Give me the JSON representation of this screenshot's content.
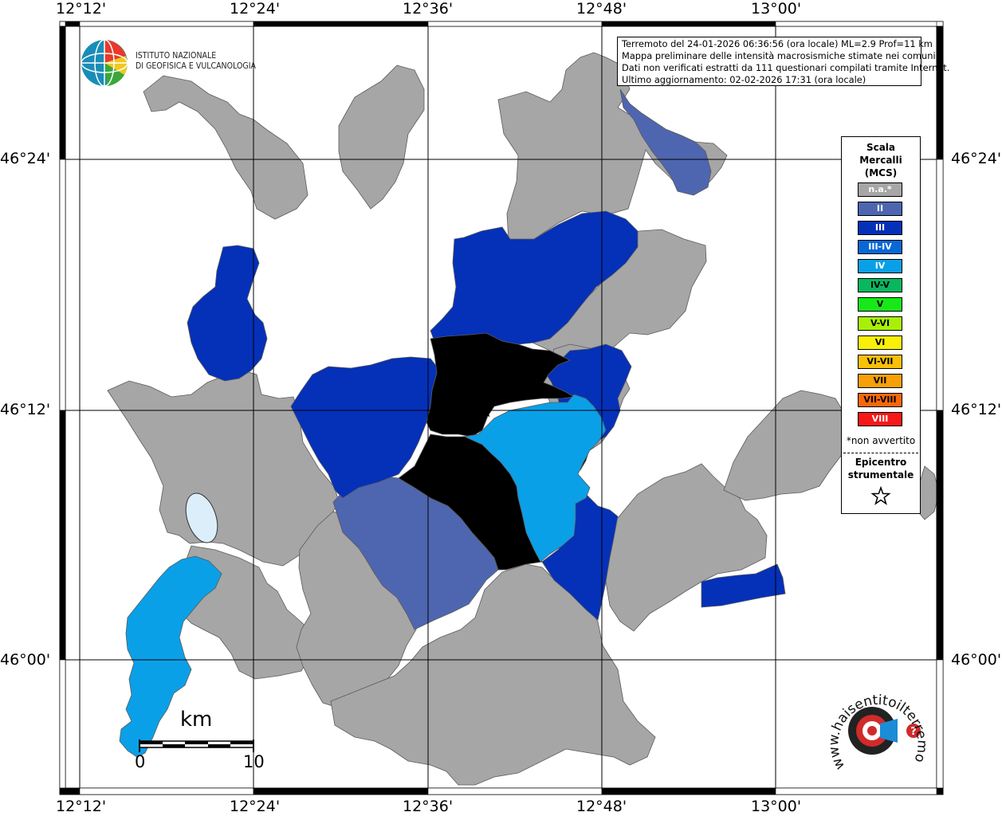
{
  "map": {
    "lon_labels": [
      "12°12'",
      "12°24'",
      "12°36'",
      "12°48'",
      "13°00'"
    ],
    "lat_labels": [
      "46°24'",
      "46°12'",
      "46°00'"
    ],
    "info": {
      "line1": "Terremoto del 24-01-2026 06:36:56 (ora locale) ML=2.9 Prof=11 km",
      "line2": "Mappa preliminare delle intensità macrosismiche stimate nei comuni",
      "line3": "Dati non verificati estratti da 111 questionari compilati tramite Internet.",
      "line4": "Ultimo aggiornamento: 02-02-2026 17:31 (ora locale)"
    },
    "logo": {
      "line1": "ISTITUTO NAZIONALE",
      "line2": "DI GEOFISICA E VULCANOLOGIA"
    },
    "scale": {
      "unit": "km",
      "start": "0",
      "end": "10"
    },
    "brand": {
      "text": "www.haisentitoilterremoto.it"
    },
    "colors": {
      "na": "#a6a6a6",
      "II": "#4e66b0",
      "III": "#0530b8",
      "III-IV": "#0868d6",
      "IV": "#0aa0e8",
      "lake": "#dceefa"
    }
  },
  "legend": {
    "title1": "Scala",
    "title2": "Mercalli",
    "title3": "(MCS)",
    "items": [
      {
        "label": "n.a.*",
        "color": "#a6a6a6",
        "text_color": "#ffffff"
      },
      {
        "label": "II",
        "color": "#4e66b0",
        "text_color": "#ffffff"
      },
      {
        "label": "III",
        "color": "#0530b8",
        "text_color": "#ffffff"
      },
      {
        "label": "III-IV",
        "color": "#0868d6",
        "text_color": "#ffffff"
      },
      {
        "label": "IV",
        "color": "#0aa0e8",
        "text_color": "#ffffff"
      },
      {
        "label": "IV-V",
        "color": "#08b860",
        "text_color": "#000000"
      },
      {
        "label": "V",
        "color": "#18e818",
        "text_color": "#000000"
      },
      {
        "label": "V-VI",
        "color": "#a8f008",
        "text_color": "#000000"
      },
      {
        "label": "VI",
        "color": "#f8f008",
        "text_color": "#000000"
      },
      {
        "label": "VI-VII",
        "color": "#f8c008",
        "text_color": "#000000"
      },
      {
        "label": "VII",
        "color": "#f8a008",
        "text_color": "#000000"
      },
      {
        "label": "VII-VIII",
        "color": "#f86808",
        "text_color": "#000000"
      },
      {
        "label": "VIII",
        "color": "#f81818",
        "text_color": "#ffffff"
      }
    ],
    "note": "*non avvertito",
    "epicenter1": "Epicentro",
    "epicenter2": "strumentale"
  }
}
